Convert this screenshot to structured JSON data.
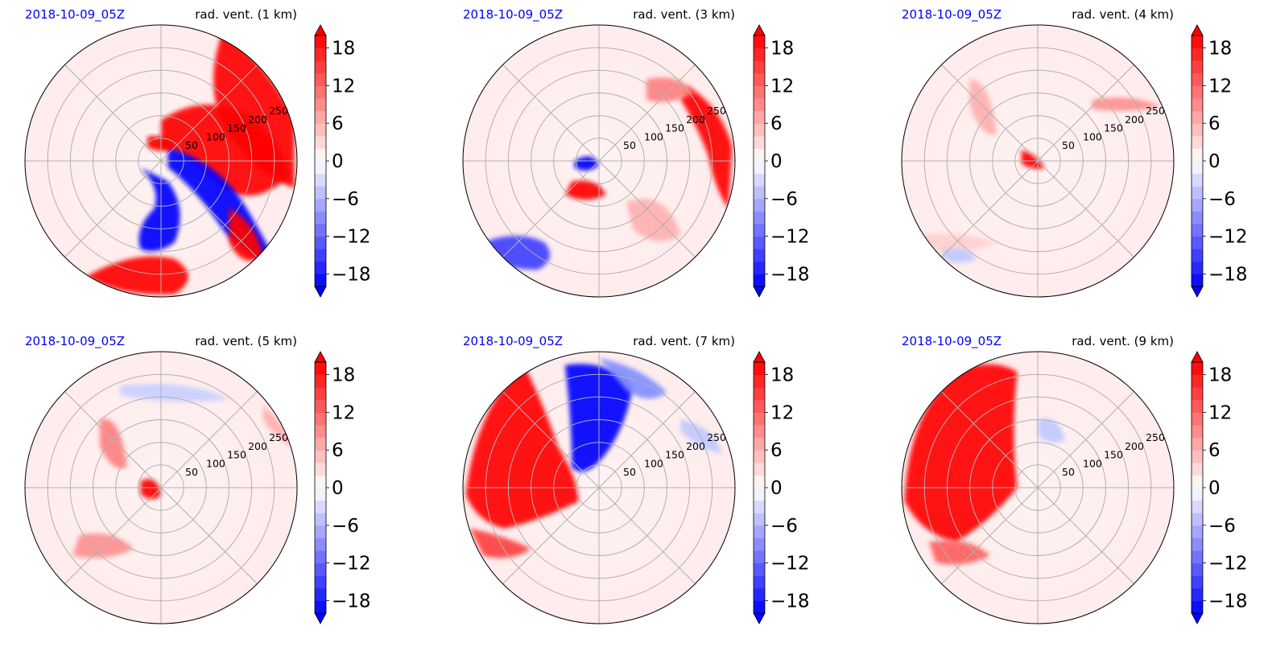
{
  "chart_data": [
    {
      "type": "heatmap",
      "title_left": "2018-10-09_05Z",
      "title_right": "rad. vent. (1 km)",
      "radial_ticks": [
        "50",
        "100",
        "150",
        "200",
        "250"
      ],
      "colorbar": {
        "ticks": [
          "18",
          "12",
          "6",
          "0",
          "−6",
          "−12",
          "−18"
        ],
        "range": [
          -20,
          20
        ],
        "extend": "both"
      }
    },
    {
      "type": "heatmap",
      "title_left": "2018-10-09_05Z",
      "title_right": "rad. vent. (3 km)",
      "radial_ticks": [
        "50",
        "100",
        "150",
        "200",
        "250"
      ],
      "colorbar": {
        "ticks": [
          "18",
          "12",
          "6",
          "0",
          "−6",
          "−12",
          "−18"
        ],
        "range": [
          -20,
          20
        ],
        "extend": "both"
      }
    },
    {
      "type": "heatmap",
      "title_left": "2018-10-09_05Z",
      "title_right": "rad. vent. (4 km)",
      "radial_ticks": [
        "50",
        "100",
        "150",
        "200",
        "250"
      ],
      "colorbar": {
        "ticks": [
          "18",
          "12",
          "6",
          "0",
          "−6",
          "−12",
          "−18"
        ],
        "range": [
          -20,
          20
        ],
        "extend": "both"
      }
    },
    {
      "type": "heatmap",
      "title_left": "2018-10-09_05Z",
      "title_right": "rad. vent. (5 km)",
      "radial_ticks": [
        "50",
        "100",
        "150",
        "200",
        "250"
      ],
      "colorbar": {
        "ticks": [
          "18",
          "12",
          "6",
          "0",
          "−6",
          "−12",
          "−18"
        ],
        "range": [
          -20,
          20
        ],
        "extend": "both"
      }
    },
    {
      "type": "heatmap",
      "title_left": "2018-10-09_05Z",
      "title_right": "rad. vent. (7 km)",
      "radial_ticks": [
        "50",
        "100",
        "150",
        "200",
        "250"
      ],
      "colorbar": {
        "ticks": [
          "18",
          "12",
          "6",
          "0",
          "−6",
          "−12",
          "−18"
        ],
        "range": [
          -20,
          20
        ],
        "extend": "both"
      }
    },
    {
      "type": "heatmap",
      "title_left": "2018-10-09_05Z",
      "title_right": "rad. vent. (9 km)",
      "radial_ticks": [
        "50",
        "100",
        "150",
        "200",
        "250"
      ],
      "colorbar": {
        "ticks": [
          "18",
          "12",
          "6",
          "0",
          "−6",
          "−12",
          "−18"
        ],
        "range": [
          -20,
          20
        ],
        "extend": "both"
      }
    }
  ],
  "colors": {
    "positive": "#ff0000",
    "negative": "#0000ff",
    "neutral": "#ffffff",
    "title_date": "#0000ff"
  }
}
